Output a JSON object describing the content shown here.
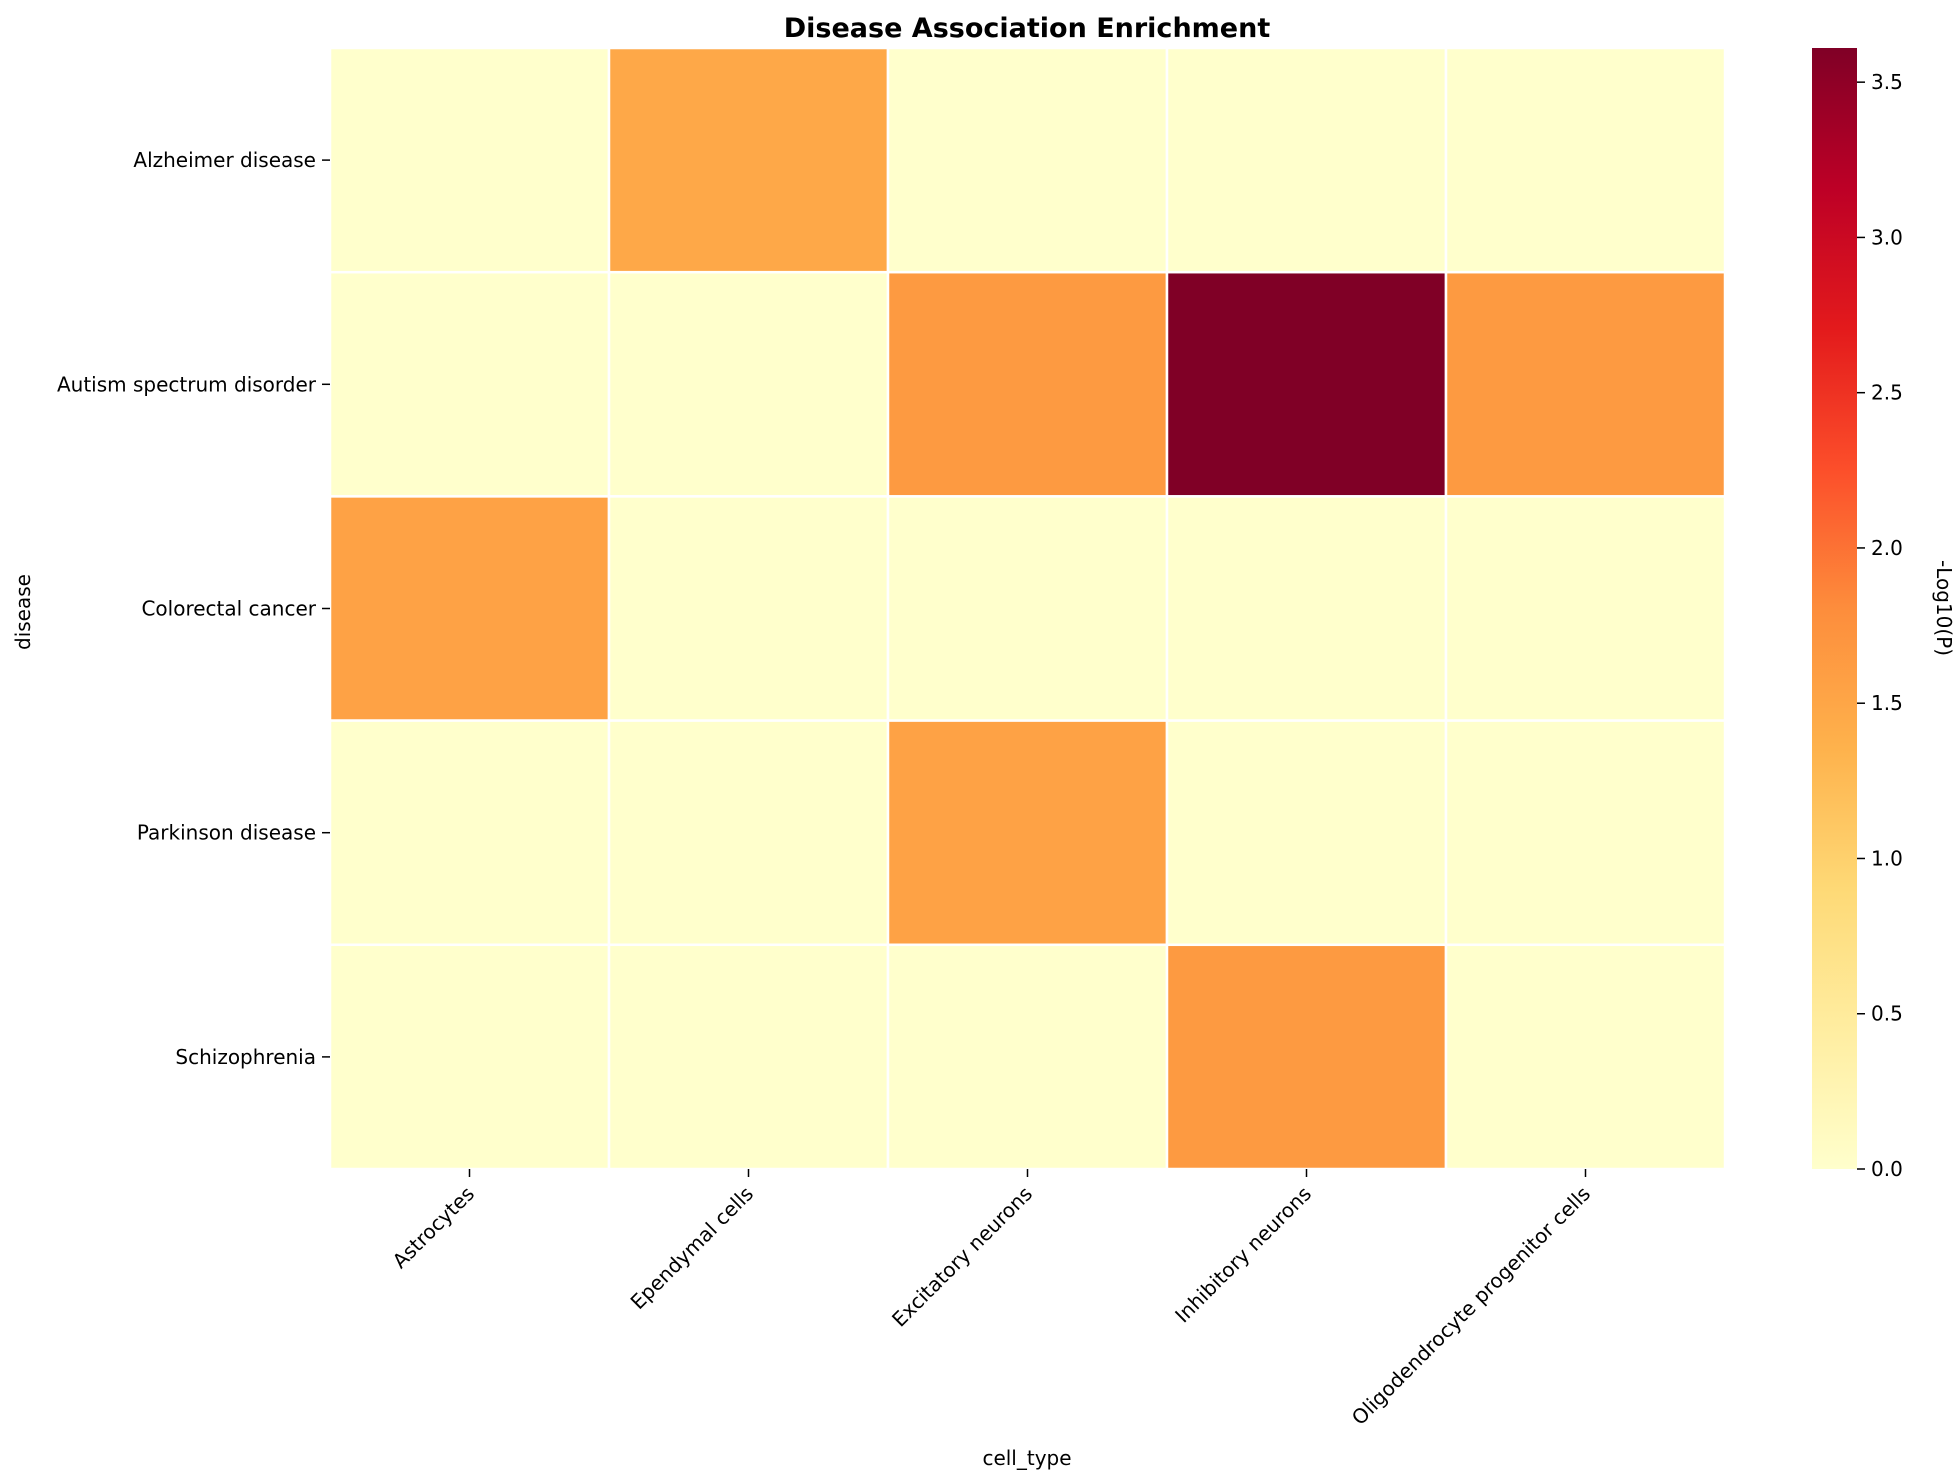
{
  "chart_data": {
    "type": "heatmap",
    "title": "Disease Association Enrichment",
    "xlabel": "cell_type",
    "ylabel": "disease",
    "x_categories": [
      "Astrocytes",
      "Ependymal cells",
      "Excitatory neurons",
      "Inhibitory neurons",
      "Oligodendrocyte progenitor cells"
    ],
    "y_categories": [
      "Alzheimer disease",
      "Autism spectrum disorder",
      "Colorectal cancer",
      "Parkinson disease",
      "Schizophrenia"
    ],
    "values": [
      [
        0.0,
        1.48,
        0.0,
        0.0,
        0.0
      ],
      [
        0.0,
        0.0,
        1.65,
        3.61,
        1.65
      ],
      [
        1.55,
        0.0,
        0.0,
        0.0,
        0.0
      ],
      [
        0.0,
        0.0,
        1.55,
        0.0,
        0.0
      ],
      [
        0.0,
        0.0,
        0.0,
        1.65,
        0.0
      ]
    ],
    "colorbar": {
      "label": "-Log10(P)",
      "range": [
        0.0,
        3.61
      ],
      "ticks": [
        "0.0",
        "0.5",
        "1.0",
        "1.5",
        "2.0",
        "2.5",
        "3.0",
        "3.5"
      ],
      "colormap": "YlOrRd",
      "colormap_stops": [
        "#ffffcc",
        "#ffeda0",
        "#fed976",
        "#feb24c",
        "#fd8d3c",
        "#fc4e2a",
        "#e31a1c",
        "#bd0026",
        "#800026"
      ]
    },
    "grid": false,
    "cell_border_color": "#ffffff"
  }
}
